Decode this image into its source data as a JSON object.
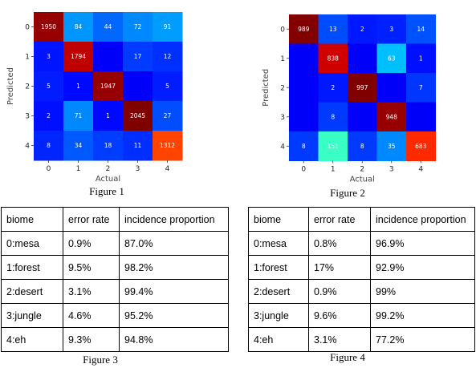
{
  "figures": [
    {
      "caption": "Figure 1",
      "chart_data": {
        "type": "heatmap",
        "xlabel": "Actual",
        "ylabel": "Predicted",
        "x_ticks": [
          "0",
          "1",
          "2",
          "3",
          "4"
        ],
        "y_ticks": [
          "0",
          "1",
          "2",
          "3",
          "4"
        ],
        "matrix": [
          [
            1950,
            84,
            44,
            72,
            91
          ],
          [
            3,
            1794,
            null,
            17,
            12
          ],
          [
            5,
            1,
            1947,
            null,
            5
          ],
          [
            2,
            71,
            1,
            2045,
            27
          ],
          [
            8,
            34,
            18,
            11,
            1312
          ]
        ],
        "colormap": "jet"
      }
    },
    {
      "caption": "Figure 2",
      "chart_data": {
        "type": "heatmap",
        "xlabel": "Actual",
        "ylabel": "Predicted",
        "x_ticks": [
          "0",
          "1",
          "2",
          "3",
          "4"
        ],
        "y_ticks": [
          "0",
          "1",
          "2",
          "3",
          "4"
        ],
        "matrix": [
          [
            989,
            13,
            2,
            3,
            14
          ],
          [
            null,
            838,
            null,
            63,
            1
          ],
          [
            null,
            2,
            997,
            null,
            7
          ],
          [
            null,
            8,
            null,
            948,
            null
          ],
          [
            8,
            151,
            8,
            35,
            683
          ]
        ],
        "colormap": "jet"
      }
    }
  ],
  "tables": [
    {
      "caption": "Figure 3",
      "headers": [
        "biome",
        "error rate",
        "incidence proportion"
      ],
      "rows": [
        [
          "0:mesa",
          "0.9%",
          "87.0%"
        ],
        [
          "1:forest",
          "9.5%",
          "98.2%"
        ],
        [
          "2:desert",
          "3.1%",
          "99.4%"
        ],
        [
          "3:jungle",
          "4.6%",
          "95.2%"
        ],
        [
          "4:eh",
          "9.3%",
          "94.8%"
        ]
      ]
    },
    {
      "caption": "Figure 4",
      "headers": [
        "biome",
        "error rate",
        "incidence proportion"
      ],
      "rows": [
        [
          "0:mesa",
          "0.8%",
          "96.9%"
        ],
        [
          "1:forest",
          "17%",
          "92.9%"
        ],
        [
          "2:desert",
          "0.9%",
          "99%"
        ],
        [
          "3:jungle",
          "9.6%",
          "99.2%"
        ],
        [
          "4:eh",
          "3.1%",
          "77.2%"
        ]
      ]
    }
  ]
}
